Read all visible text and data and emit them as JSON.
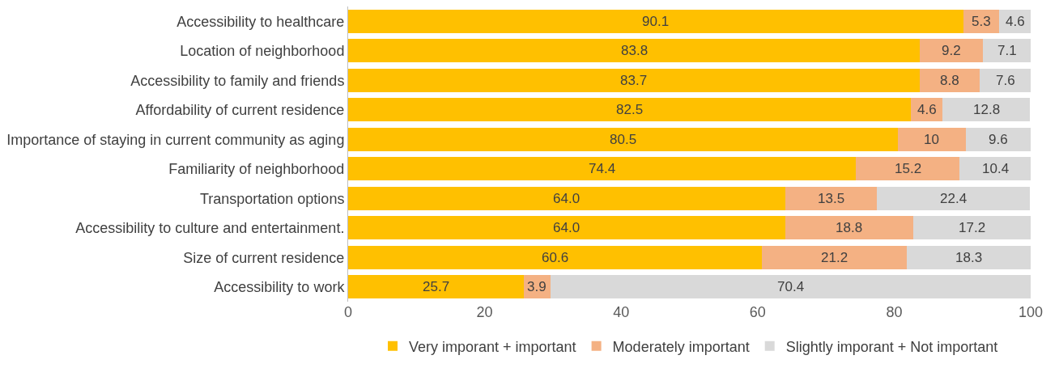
{
  "chart_data": {
    "type": "bar",
    "orientation": "horizontal",
    "stacked": true,
    "categories": [
      "Accessibility to healthcare",
      "Location of neighborhood",
      "Accessibility to family and friends",
      "Affordability of current residence",
      "Importance of staying in current community as aging",
      "Familiarity of neighborhood",
      "Transportation options",
      "Accessibility to culture and entertainment.",
      "Size of current residence",
      "Accessibility to work"
    ],
    "series": [
      {
        "name": "Very imporant + important",
        "color": "#ffc000",
        "values": [
          90.1,
          83.8,
          83.7,
          82.5,
          80.5,
          74.4,
          64.0,
          64.0,
          60.6,
          25.7
        ],
        "value_labels": [
          "90.1",
          "83.8",
          "83.7",
          "82.5",
          "80.5",
          "74.4",
          "64.0",
          "64.0",
          "60.6",
          "25.7"
        ]
      },
      {
        "name": "Moderately important",
        "color": "#f4b183",
        "values": [
          5.3,
          9.2,
          8.8,
          4.6,
          10,
          15.2,
          13.5,
          18.8,
          21.2,
          3.9
        ],
        "value_labels": [
          "5.3",
          "9.2",
          "8.8",
          "4.6",
          "10",
          "15.2",
          "13.5",
          "18.8",
          "21.2",
          "3.9"
        ]
      },
      {
        "name": "Slightly imporant + Not important",
        "color": "#d9d9d9",
        "values": [
          4.6,
          7.1,
          7.6,
          12.8,
          9.6,
          10.4,
          22.4,
          17.2,
          18.3,
          70.4
        ],
        "value_labels": [
          "4.6",
          "7.1",
          "7.6",
          "12.8",
          "9.6",
          "10.4",
          "22.4",
          "17.2",
          "18.3",
          "70.4"
        ]
      }
    ],
    "xlim": [
      0,
      100
    ],
    "xticks": [
      0,
      20,
      40,
      60,
      80,
      100
    ],
    "grid": false,
    "legend": "bottom"
  }
}
